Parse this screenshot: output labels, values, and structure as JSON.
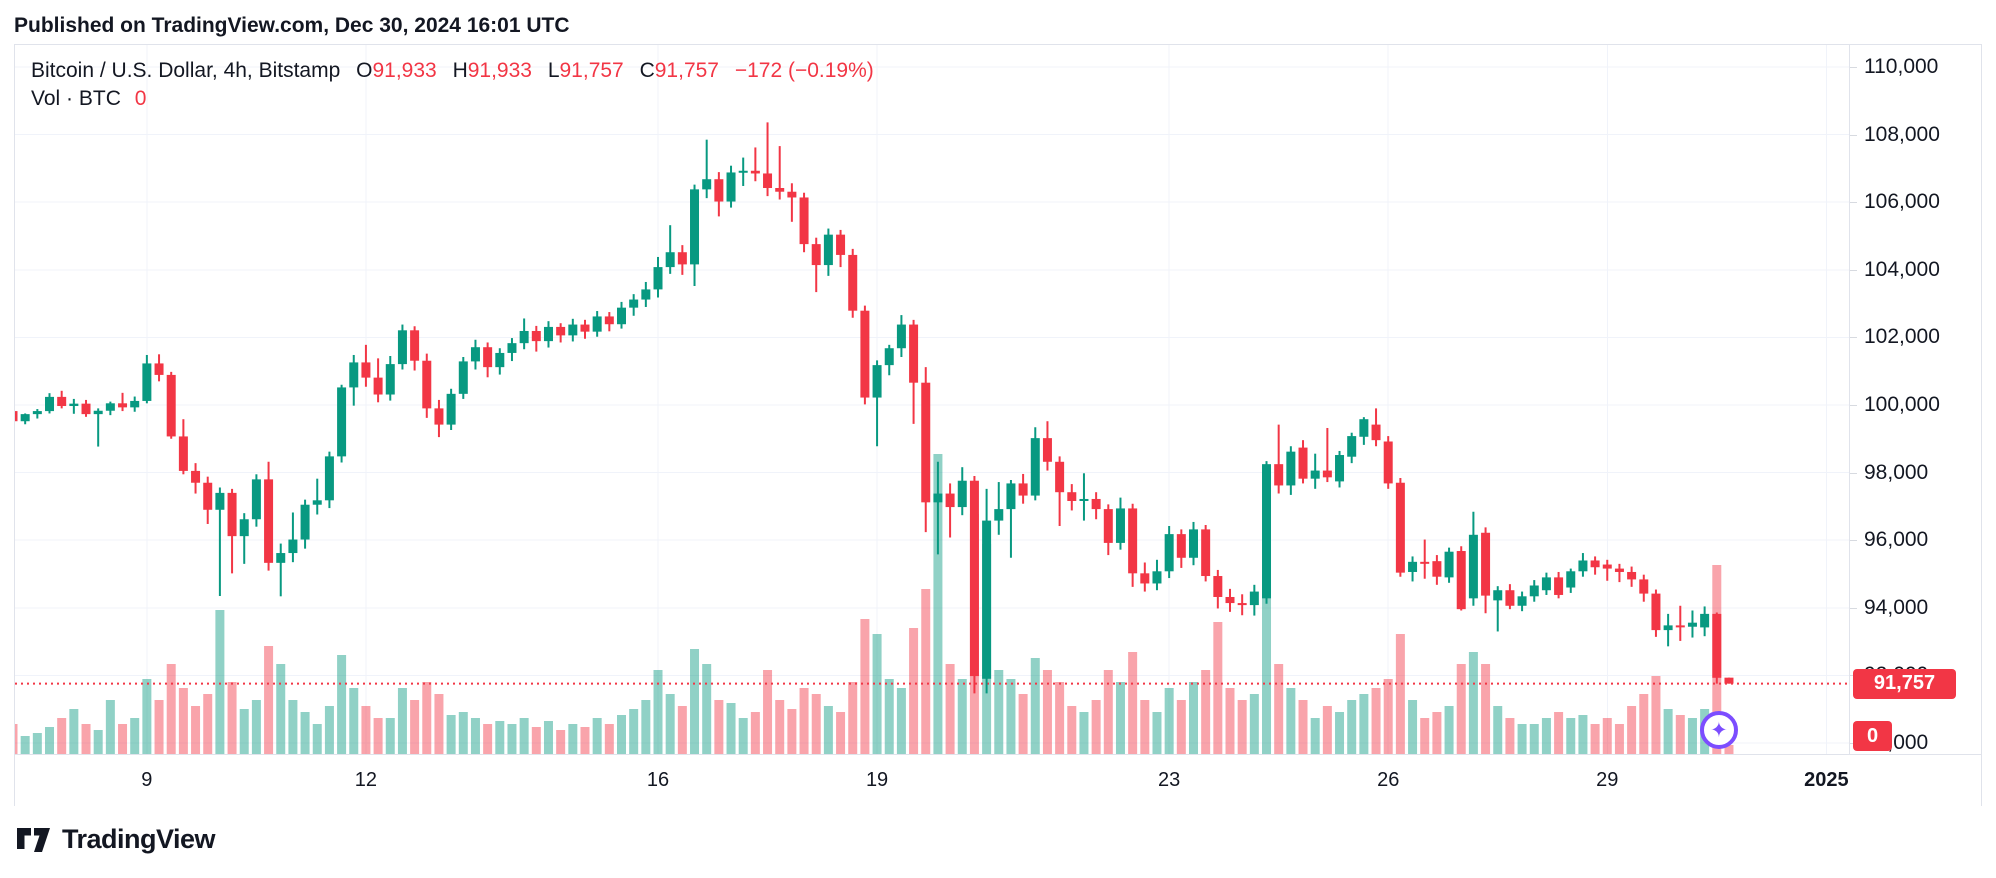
{
  "page": {
    "published_line": "Published on TradingView.com, Dec 30, 2024 16:01 UTC"
  },
  "legend": {
    "title": "Bitcoin / U.S. Dollar, 4h, Bitstamp",
    "ohlc": [
      {
        "k": "O",
        "v": "91,933"
      },
      {
        "k": "H",
        "v": "91,933"
      },
      {
        "k": "L",
        "v": "91,757"
      },
      {
        "k": "C",
        "v": "91,757"
      }
    ],
    "change": "−172 (−0.19%)",
    "vol_label": "Vol · BTC",
    "vol_value": "0"
  },
  "colors": {
    "up": "#089981",
    "down": "#f23645",
    "vol_up": "rgba(8,153,129,0.45)",
    "vol_down": "rgba(242,54,69,0.45)",
    "grid": "#f0f3fa",
    "border": "#e0e3eb",
    "text": "#131722",
    "accent_red": "#f23645",
    "sparkle_purple": "#7c4dff"
  },
  "axis": {
    "price_ticks": [
      110000,
      108000,
      106000,
      104000,
      102000,
      100000,
      98000,
      96000,
      94000,
      92000,
      90000
    ],
    "time_ticks": [
      {
        "label": "9",
        "bar": 11,
        "bold": false
      },
      {
        "label": "12",
        "bar": 29,
        "bold": false
      },
      {
        "label": "16",
        "bar": 53,
        "bold": false
      },
      {
        "label": "19",
        "bar": 71,
        "bold": false
      },
      {
        "label": "23",
        "bar": 95,
        "bold": false
      },
      {
        "label": "26",
        "bar": 113,
        "bold": false
      },
      {
        "label": "29",
        "bar": 131,
        "bold": false
      },
      {
        "label": "2025",
        "bar": 149,
        "bold": true
      }
    ]
  },
  "price_line": {
    "value": 91757,
    "label": "91,757"
  },
  "volume_badge": {
    "label": "0"
  },
  "footer": {
    "brand": "TradingView"
  },
  "chart_data": {
    "type": "candlestick-with-volume",
    "title": "Bitcoin / U.S. Dollar",
    "symbol": "BTC/USD",
    "interval": "4h",
    "exchange": "Bitstamp",
    "last_bar": {
      "open": 91933,
      "high": 91933,
      "low": 91757,
      "close": 91757,
      "change": -172,
      "change_pct": -0.19
    },
    "volume_last": 0,
    "y_axis_range": [
      89000,
      110800
    ],
    "x_axis_days": [
      "Dec 9",
      "Dec 12",
      "Dec 16",
      "Dec 19",
      "Dec 23",
      "Dec 26",
      "Dec 29",
      "Jan 1 2025"
    ],
    "candles_format": [
      "open",
      "high",
      "low",
      "close",
      "relative_volume"
    ],
    "candles": [
      [
        99820,
        99900,
        99220,
        99520,
        0.1
      ],
      [
        99520,
        99750,
        99430,
        99730,
        0.06
      ],
      [
        99730,
        99880,
        99600,
        99820,
        0.07
      ],
      [
        99820,
        100350,
        99750,
        100240,
        0.09
      ],
      [
        100240,
        100420,
        99900,
        99970,
        0.12
      ],
      [
        99970,
        100180,
        99740,
        100040,
        0.15
      ],
      [
        100040,
        100150,
        99650,
        99730,
        0.1
      ],
      [
        99730,
        99900,
        98770,
        99830,
        0.08
      ],
      [
        99830,
        100100,
        99700,
        100050,
        0.18
      ],
      [
        100050,
        100360,
        99820,
        99930,
        0.1
      ],
      [
        99930,
        100250,
        99800,
        100120,
        0.12
      ],
      [
        100120,
        101480,
        100050,
        101230,
        0.25
      ],
      [
        101230,
        101500,
        100700,
        100890,
        0.18
      ],
      [
        100890,
        100980,
        99000,
        99070,
        0.3
      ],
      [
        99070,
        99580,
        97950,
        98050,
        0.22
      ],
      [
        98050,
        98280,
        97380,
        97700,
        0.16
      ],
      [
        97700,
        97880,
        96480,
        96900,
        0.2
      ],
      [
        96900,
        97560,
        94350,
        97400,
        0.48
      ],
      [
        97400,
        97520,
        95020,
        96120,
        0.24
      ],
      [
        96120,
        96800,
        95300,
        96620,
        0.15
      ],
      [
        96620,
        97950,
        96400,
        97800,
        0.18
      ],
      [
        97800,
        98320,
        95100,
        95330,
        0.36
      ],
      [
        95330,
        95900,
        94340,
        95620,
        0.3
      ],
      [
        95620,
        96820,
        95350,
        96020,
        0.18
      ],
      [
        96020,
        97200,
        95750,
        97050,
        0.14
      ],
      [
        97050,
        97820,
        96760,
        97180,
        0.1
      ],
      [
        97180,
        98620,
        96950,
        98480,
        0.16
      ],
      [
        98480,
        100600,
        98300,
        100520,
        0.33
      ],
      [
        100520,
        101480,
        99980,
        101260,
        0.22
      ],
      [
        101260,
        101780,
        100540,
        100810,
        0.16
      ],
      [
        100810,
        101380,
        100080,
        100310,
        0.12
      ],
      [
        100310,
        101450,
        100130,
        101210,
        0.12
      ],
      [
        101210,
        102380,
        101050,
        102210,
        0.22
      ],
      [
        102210,
        102330,
        101020,
        101310,
        0.18
      ],
      [
        101310,
        101520,
        99620,
        99900,
        0.24
      ],
      [
        99900,
        100150,
        99050,
        99420,
        0.2
      ],
      [
        99420,
        100480,
        99260,
        100330,
        0.13
      ],
      [
        100330,
        101420,
        100180,
        101290,
        0.14
      ],
      [
        101290,
        101930,
        101050,
        101710,
        0.12
      ],
      [
        101710,
        101850,
        100820,
        101120,
        0.1
      ],
      [
        101120,
        101680,
        100900,
        101540,
        0.11
      ],
      [
        101540,
        101980,
        101300,
        101830,
        0.1
      ],
      [
        101830,
        102560,
        101650,
        102190,
        0.12
      ],
      [
        102190,
        102340,
        101580,
        101890,
        0.09
      ],
      [
        101890,
        102480,
        101700,
        102310,
        0.11
      ],
      [
        102310,
        102420,
        101850,
        102060,
        0.08
      ],
      [
        102060,
        102550,
        101880,
        102380,
        0.1
      ],
      [
        102380,
        102520,
        101960,
        102170,
        0.09
      ],
      [
        102170,
        102780,
        102020,
        102620,
        0.12
      ],
      [
        102620,
        102750,
        102180,
        102390,
        0.1
      ],
      [
        102390,
        103050,
        102260,
        102880,
        0.13
      ],
      [
        102880,
        103280,
        102640,
        103120,
        0.15
      ],
      [
        103120,
        103640,
        102900,
        103420,
        0.18
      ],
      [
        103420,
        104380,
        103180,
        104080,
        0.28
      ],
      [
        104080,
        105320,
        103880,
        104520,
        0.2
      ],
      [
        104520,
        104730,
        103850,
        104160,
        0.16
      ],
      [
        104160,
        106520,
        103520,
        106380,
        0.35
      ],
      [
        106380,
        107850,
        106120,
        106680,
        0.3
      ],
      [
        106680,
        106890,
        105580,
        106020,
        0.18
      ],
      [
        106020,
        107080,
        105840,
        106880,
        0.17
      ],
      [
        106880,
        107320,
        106480,
        106930,
        0.12
      ],
      [
        106930,
        107620,
        106620,
        106850,
        0.14
      ],
      [
        106850,
        108360,
        106180,
        106420,
        0.28
      ],
      [
        106420,
        107660,
        106080,
        106310,
        0.18
      ],
      [
        106310,
        106560,
        105420,
        106140,
        0.15
      ],
      [
        106140,
        106280,
        104520,
        104760,
        0.22
      ],
      [
        104760,
        104950,
        103340,
        104140,
        0.2
      ],
      [
        104140,
        105220,
        103820,
        105040,
        0.16
      ],
      [
        105040,
        105180,
        104080,
        104440,
        0.14
      ],
      [
        104440,
        104620,
        102580,
        102790,
        0.24
      ],
      [
        102790,
        102940,
        100020,
        100220,
        0.45
      ],
      [
        100220,
        101320,
        98780,
        101180,
        0.4
      ],
      [
        101180,
        101780,
        100880,
        101680,
        0.25
      ],
      [
        101680,
        102660,
        101420,
        102380,
        0.22
      ],
      [
        102380,
        102520,
        99440,
        100660,
        0.42
      ],
      [
        100660,
        101120,
        96240,
        97120,
        0.55
      ],
      [
        97120,
        98320,
        95580,
        97380,
        1.0
      ],
      [
        97380,
        97680,
        96080,
        96980,
        0.3
      ],
      [
        96980,
        98160,
        96740,
        97760,
        0.25
      ],
      [
        97760,
        97900,
        91470,
        91980,
        0.8
      ],
      [
        91900,
        97520,
        91470,
        96580,
        0.7
      ],
      [
        96580,
        97720,
        96160,
        96920,
        0.28
      ],
      [
        96920,
        97780,
        95480,
        97680,
        0.25
      ],
      [
        97680,
        97960,
        97080,
        97320,
        0.2
      ],
      [
        97320,
        99340,
        97180,
        99020,
        0.32
      ],
      [
        99020,
        99520,
        98060,
        98320,
        0.28
      ],
      [
        98320,
        98480,
        96420,
        97420,
        0.24
      ],
      [
        97420,
        97660,
        96880,
        97160,
        0.16
      ],
      [
        97160,
        97980,
        96580,
        97220,
        0.14
      ],
      [
        97220,
        97420,
        96620,
        96920,
        0.18
      ],
      [
        96920,
        97060,
        95560,
        95920,
        0.28
      ],
      [
        95920,
        97260,
        95720,
        96940,
        0.24
      ],
      [
        96940,
        97080,
        94620,
        95020,
        0.34
      ],
      [
        95020,
        95340,
        94480,
        94720,
        0.18
      ],
      [
        94720,
        95420,
        94520,
        95080,
        0.14
      ],
      [
        95080,
        96420,
        94880,
        96180,
        0.22
      ],
      [
        96180,
        96320,
        95180,
        95480,
        0.18
      ],
      [
        95480,
        96540,
        95260,
        96320,
        0.24
      ],
      [
        96320,
        96450,
        94780,
        94940,
        0.28
      ],
      [
        94940,
        95120,
        93980,
        94320,
        0.44
      ],
      [
        94320,
        94560,
        93880,
        94140,
        0.22
      ],
      [
        94140,
        94400,
        93780,
        94080,
        0.18
      ],
      [
        94080,
        94680,
        93770,
        94480,
        0.2
      ],
      [
        94280,
        98340,
        94120,
        98250,
        0.6
      ],
      [
        98250,
        99420,
        97380,
        97620,
        0.3
      ],
      [
        97620,
        98780,
        97340,
        98620,
        0.22
      ],
      [
        98740,
        98960,
        97680,
        97820,
        0.18
      ],
      [
        97820,
        98560,
        97520,
        98060,
        0.12
      ],
      [
        98060,
        99320,
        97720,
        97860,
        0.16
      ],
      [
        97740,
        98640,
        97560,
        98520,
        0.14
      ],
      [
        98470,
        99180,
        98280,
        99080,
        0.18
      ],
      [
        99060,
        99640,
        98820,
        99580,
        0.2
      ],
      [
        99420,
        99900,
        98780,
        98960,
        0.22
      ],
      [
        98920,
        99080,
        97520,
        97680,
        0.25
      ],
      [
        97700,
        97840,
        94920,
        95040,
        0.4
      ],
      [
        95060,
        95520,
        94780,
        95360,
        0.18
      ],
      [
        95360,
        96020,
        94860,
        95320,
        0.12
      ],
      [
        95380,
        95560,
        94680,
        94920,
        0.14
      ],
      [
        94900,
        95780,
        94740,
        95660,
        0.16
      ],
      [
        95680,
        95820,
        93920,
        93960,
        0.3
      ],
      [
        94280,
        96840,
        94060,
        96160,
        0.34
      ],
      [
        96220,
        96380,
        93840,
        94360,
        0.3
      ],
      [
        94220,
        94640,
        93300,
        94520,
        0.16
      ],
      [
        94520,
        94700,
        93960,
        94060,
        0.12
      ],
      [
        94060,
        94480,
        93900,
        94340,
        0.1
      ],
      [
        94340,
        94820,
        94180,
        94660,
        0.1
      ],
      [
        94520,
        95040,
        94380,
        94900,
        0.12
      ],
      [
        94900,
        95060,
        94280,
        94380,
        0.14
      ],
      [
        94600,
        95160,
        94440,
        95080,
        0.12
      ],
      [
        95080,
        95620,
        94920,
        95400,
        0.13
      ],
      [
        95400,
        95520,
        94980,
        95200,
        0.1
      ],
      [
        95280,
        95420,
        94800,
        95160,
        0.12
      ],
      [
        95160,
        95300,
        94760,
        95060,
        0.1
      ],
      [
        95060,
        95220,
        94620,
        94840,
        0.16
      ],
      [
        94840,
        94980,
        94180,
        94420,
        0.2
      ],
      [
        94420,
        94540,
        93140,
        93340,
        0.26
      ],
      [
        93340,
        93820,
        92860,
        93480,
        0.15
      ],
      [
        93480,
        94060,
        93020,
        93440,
        0.13
      ],
      [
        93440,
        93920,
        93120,
        93560,
        0.12
      ],
      [
        93420,
        94040,
        93160,
        93820,
        0.15
      ],
      [
        93820,
        93860,
        91757,
        91929,
        0.63
      ],
      [
        91933,
        91933,
        91757,
        91757,
        0.03
      ]
    ]
  }
}
